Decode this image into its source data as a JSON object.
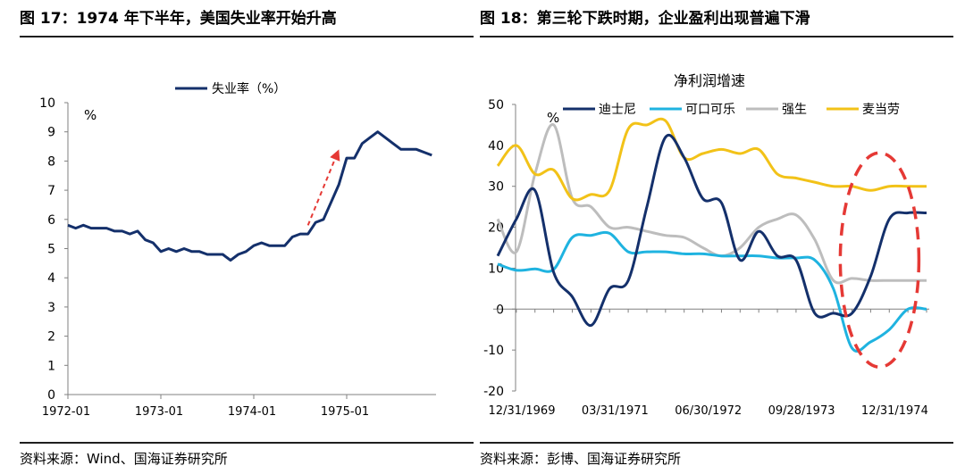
{
  "left_panel": {
    "title": "图 17：1974 年下半年，美国失业率开始升高",
    "source": "资料来源：Wind、国海证券研究所"
  },
  "right_panel": {
    "title": "图 18：第三轮下跌时期，企业盈利出现普遍下滑",
    "source": "资料来源：彭博、国海证券研究所"
  },
  "chart_data": [
    {
      "type": "line",
      "title": "",
      "unit_label": "%",
      "xlabel": "",
      "ylabel": "",
      "ylim": [
        0,
        10
      ],
      "yticks": [
        0,
        1,
        2,
        3,
        4,
        5,
        6,
        7,
        8,
        9,
        10
      ],
      "xticks": [
        "1972-01",
        "1973-01",
        "1974-01",
        "1975-01"
      ],
      "x_start": "1972-01",
      "legend_position": "top-center",
      "series": [
        {
          "name": "失业率（%）",
          "color": "#14306b",
          "values": [
            5.8,
            5.7,
            5.8,
            5.7,
            5.7,
            5.7,
            5.6,
            5.6,
            5.5,
            5.6,
            5.3,
            5.2,
            4.9,
            5.0,
            4.9,
            5.0,
            4.9,
            4.9,
            4.8,
            4.8,
            4.8,
            4.6,
            4.8,
            4.9,
            5.1,
            5.2,
            5.1,
            5.1,
            5.1,
            5.4,
            5.5,
            5.5,
            5.9,
            6.0,
            6.6,
            7.2,
            8.1,
            8.1,
            8.6,
            8.8,
            9.0,
            8.8,
            8.6,
            8.4,
            8.4,
            8.4,
            8.3,
            8.2
          ]
        }
      ],
      "annotation": {
        "type": "arrow",
        "color": "#e53935",
        "style": "dashed",
        "from": {
          "x": "1974-08",
          "y": 5.8
        },
        "to": {
          "x": "1974-12",
          "y": 8.4
        }
      }
    },
    {
      "type": "line",
      "title": "净利润增速",
      "unit_label": "%",
      "xlabel": "",
      "ylabel": "",
      "ylim": [
        -20,
        50
      ],
      "yticks": [
        -20,
        -10,
        0,
        10,
        20,
        30,
        40,
        50
      ],
      "xticks": [
        "12/31/1969",
        "03/31/1971",
        "06/30/1972",
        "09/28/1973",
        "12/31/1974"
      ],
      "x": [
        "12/31/1969",
        "03/31/1970",
        "06/30/1970",
        "09/30/1970",
        "12/31/1970",
        "03/31/1971",
        "06/30/1971",
        "09/30/1971",
        "12/31/1971",
        "03/31/1972",
        "06/30/1972",
        "09/29/1972",
        "12/29/1972",
        "03/30/1973",
        "06/29/1973",
        "09/28/1973",
        "12/31/1973",
        "03/29/1974",
        "06/28/1974",
        "09/30/1974",
        "12/31/1974",
        "03/31/1975",
        "06/30/1975",
        "09/30/1975"
      ],
      "legend_position": "top",
      "series": [
        {
          "name": "迪士尼",
          "color": "#14306b",
          "values": [
            13,
            22,
            29,
            9,
            3,
            -4,
            5,
            7,
            25,
            42,
            37,
            27,
            26,
            12,
            19,
            13,
            12,
            -1,
            -1,
            -1,
            8,
            22,
            23.5,
            23.5
          ]
        },
        {
          "name": "可口可乐",
          "color": "#1fb3e0",
          "values": [
            11,
            9.5,
            9.8,
            9.7,
            17.5,
            18,
            18.5,
            14,
            14,
            14,
            13.5,
            13.5,
            13,
            13,
            13,
            12.5,
            12.5,
            12,
            5,
            -9.5,
            -8,
            -5,
            0,
            0
          ]
        },
        {
          "name": "强生",
          "color": "#bdbdbd",
          "values": [
            22,
            14,
            33,
            45,
            27,
            25,
            20,
            20,
            19,
            18,
            17.5,
            15,
            13,
            15,
            20,
            22,
            23,
            17,
            7,
            7.5,
            7,
            7,
            7,
            7
          ]
        },
        {
          "name": "麦当劳",
          "color": "#f2c218",
          "values": [
            35,
            40,
            33,
            34,
            27,
            28,
            29,
            44,
            45,
            46,
            37,
            38,
            39,
            38,
            39,
            33,
            32,
            31,
            30,
            30,
            29,
            30,
            30,
            30
          ]
        }
      ],
      "annotation": {
        "type": "ellipse",
        "color": "#e53935",
        "style": "dashed",
        "center": {
          "x": "12/31/1974",
          "y": 12
        }
      }
    }
  ]
}
